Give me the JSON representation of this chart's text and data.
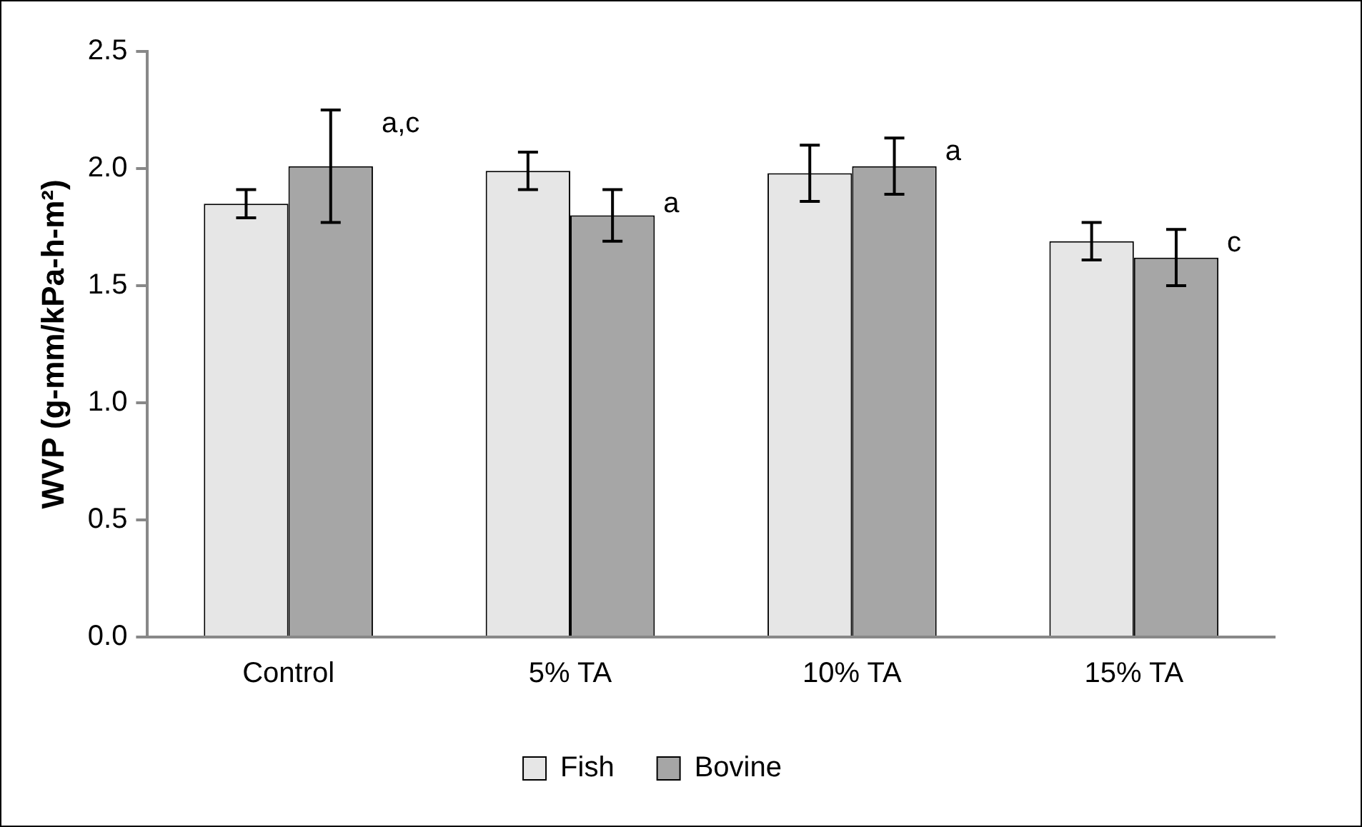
{
  "chart_data": {
    "type": "bar",
    "ylabel": "WVP (g-mm/kPa-h-m²)",
    "categories": [
      "Control",
      "5% TA",
      "10% TA",
      "15% TA"
    ],
    "series": [
      {
        "name": "Fish",
        "color": "#e6e6e6",
        "values": [
          1.85,
          1.99,
          1.98,
          1.69
        ],
        "errors": [
          0.06,
          0.08,
          0.12,
          0.08
        ]
      },
      {
        "name": "Bovine",
        "color": "#a6a6a6",
        "values": [
          2.01,
          1.8,
          2.01,
          1.62
        ],
        "errors": [
          0.24,
          0.11,
          0.12,
          0.12
        ]
      }
    ],
    "ylim": [
      0,
      2.5
    ],
    "yticks": [
      {
        "value": 0,
        "label": "0.0"
      },
      {
        "value": 0.5,
        "label": "0.5"
      },
      {
        "value": 1,
        "label": "1.0"
      },
      {
        "value": 1.5,
        "label": "1.5"
      },
      {
        "value": 2,
        "label": "2.0"
      },
      {
        "value": 2.5,
        "label": "2.5"
      }
    ],
    "grid": false,
    "legend": "bottom",
    "annotations": [
      "a,c",
      "a",
      "a",
      "c"
    ]
  }
}
